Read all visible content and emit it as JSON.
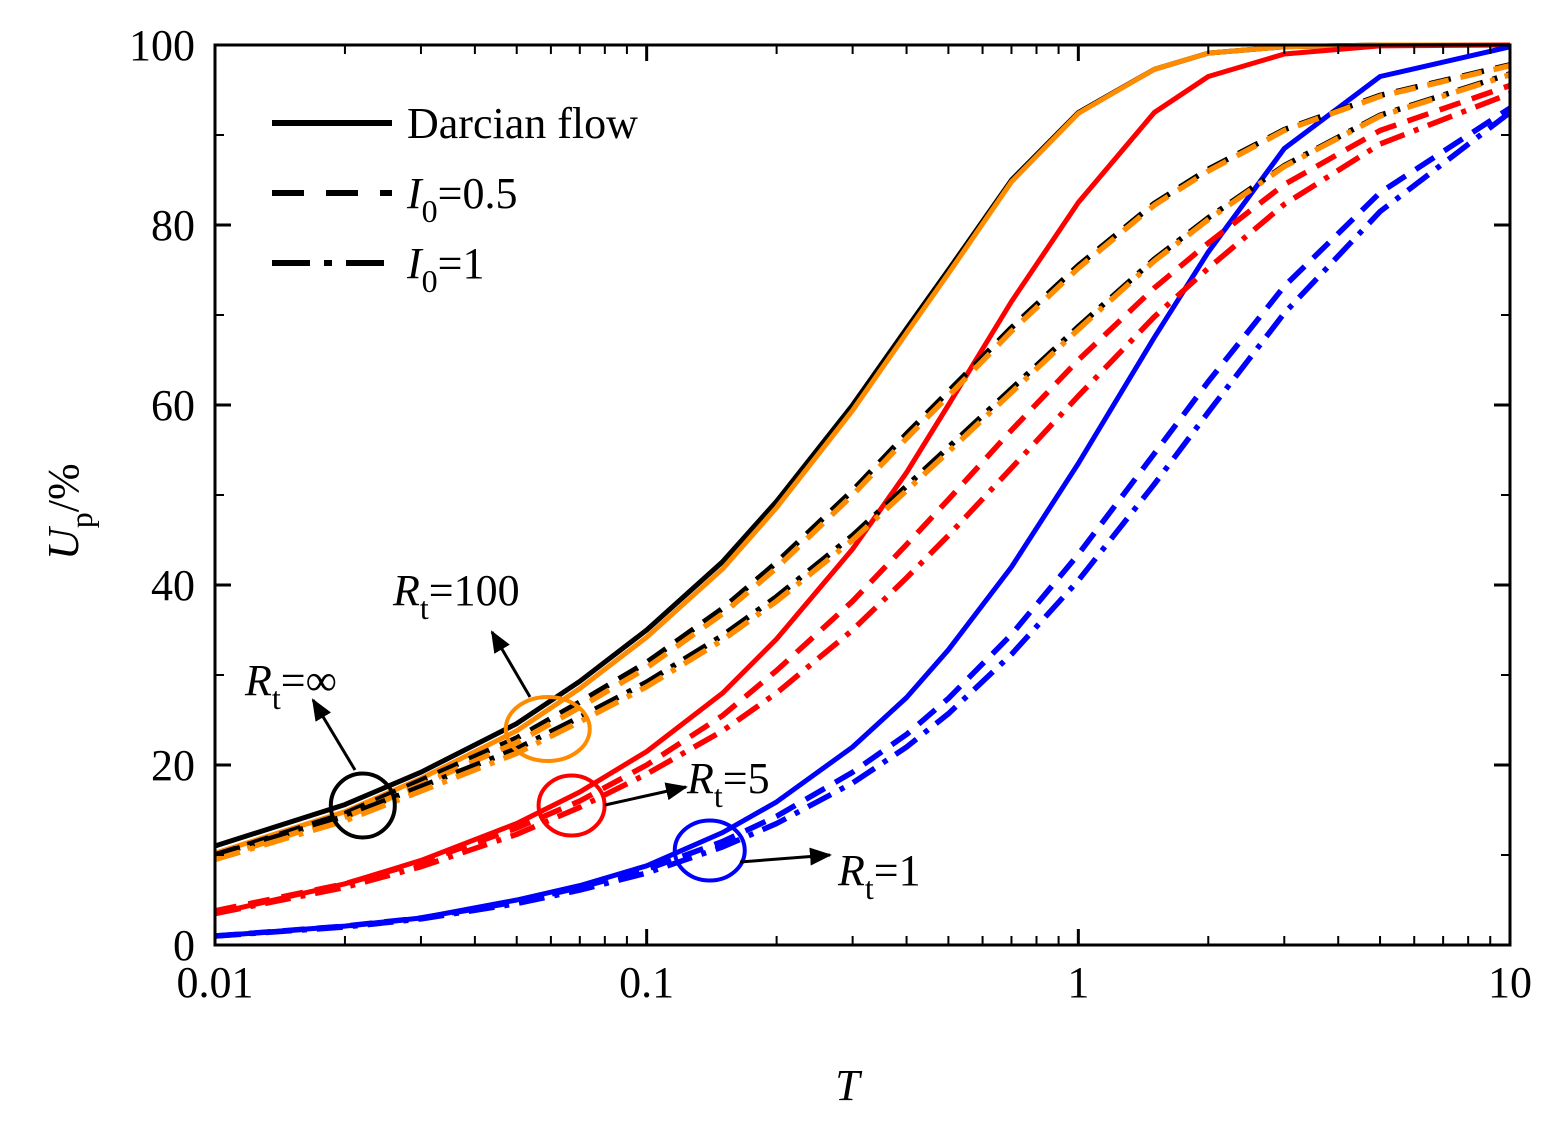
{
  "chart_data": {
    "type": "line",
    "x_scale": "log",
    "xlim": [
      0.01,
      10
    ],
    "ylim": [
      0,
      100
    ],
    "xlabel": "T",
    "ylabel": {
      "main": "U",
      "sub": "p",
      "rest": "/%"
    },
    "x_ticks": [
      0.01,
      0.1,
      1,
      10
    ],
    "x_tick_labels": [
      "0.01",
      "0.1",
      "1",
      "10"
    ],
    "y_ticks": [
      0,
      20,
      40,
      60,
      80,
      100
    ],
    "y_tick_labels": [
      "0",
      "20",
      "40",
      "60",
      "80",
      "100"
    ],
    "colors": {
      "inf": "#000000",
      "r100": "#ff8c00",
      "r5": "#ff0000",
      "r1": "#0000ff"
    },
    "legend": [
      {
        "label": "Darcian flow",
        "style": "solid"
      },
      {
        "label_main": "I",
        "label_sub": "0",
        "label_rest": "=0.5",
        "style": "dash"
      },
      {
        "label_main": "I",
        "label_sub": "0",
        "label_rest": "=1",
        "style": "dashdot"
      }
    ],
    "annotations": [
      {
        "main": "R",
        "sub": "t",
        "rest": "=∞",
        "group": "inf"
      },
      {
        "main": "R",
        "sub": "t",
        "rest": "=100",
        "group": "r100"
      },
      {
        "main": "R",
        "sub": "t",
        "rest": "=5",
        "group": "r5"
      },
      {
        "main": "R",
        "sub": "t",
        "rest": "=1",
        "group": "r1"
      }
    ],
    "series": [
      {
        "name": "R_t=∞ Darcian flow",
        "group": "inf",
        "style": "solid",
        "x": [
          0.01,
          0.02,
          0.03,
          0.05,
          0.07,
          0.1,
          0.15,
          0.2,
          0.3,
          0.4,
          0.5,
          0.7,
          1,
          1.5,
          2,
          3,
          5,
          10
        ],
        "y": [
          11,
          15.6,
          19.2,
          24.6,
          29.3,
          35,
          42.6,
          49.3,
          60,
          68.5,
          75,
          85,
          92.5,
          97.3,
          99.1,
          99.8,
          100,
          100
        ]
      },
      {
        "name": "R_t=100 Darcian flow",
        "group": "r100",
        "style": "solid",
        "x": [
          0.01,
          0.02,
          0.03,
          0.05,
          0.07,
          0.1,
          0.15,
          0.2,
          0.3,
          0.4,
          0.5,
          0.7,
          1,
          1.5,
          2,
          3,
          5,
          10
        ],
        "y": [
          10.2,
          14.8,
          18.5,
          23.8,
          28.5,
          34.2,
          41.8,
          48.6,
          59.4,
          68,
          74.6,
          84.8,
          92.4,
          97.3,
          99.1,
          99.8,
          100,
          100
        ]
      },
      {
        "name": "R_t=5 Darcian flow",
        "group": "r5",
        "style": "solid",
        "x": [
          0.01,
          0.02,
          0.03,
          0.05,
          0.07,
          0.1,
          0.15,
          0.2,
          0.3,
          0.4,
          0.5,
          0.7,
          1,
          1.5,
          2,
          3,
          5,
          10
        ],
        "y": [
          3.5,
          6.8,
          9.4,
          13.5,
          17,
          21.5,
          28,
          34,
          44,
          52.5,
          60,
          71.5,
          82.5,
          92.5,
          96.5,
          99,
          99.9,
          100
        ]
      },
      {
        "name": "R_t=1 Darcian flow",
        "group": "r1",
        "style": "solid",
        "x": [
          0.01,
          0.02,
          0.03,
          0.05,
          0.07,
          0.1,
          0.15,
          0.2,
          0.3,
          0.4,
          0.5,
          0.7,
          1,
          1.5,
          2,
          3,
          5,
          10
        ],
        "y": [
          1,
          2.1,
          3,
          5,
          6.6,
          8.8,
          12.5,
          15.9,
          22,
          27.5,
          32.8,
          42,
          53.5,
          67.5,
          77,
          88.5,
          96.5,
          99.8
        ]
      },
      {
        "name": "R_t=∞ I0=0.5",
        "group": "inf",
        "style": "dash",
        "x": [
          0.01,
          0.02,
          0.03,
          0.05,
          0.07,
          0.1,
          0.15,
          0.2,
          0.3,
          0.4,
          0.5,
          0.7,
          1,
          1.5,
          2,
          3,
          5,
          10
        ],
        "y": [
          10,
          14.6,
          18.3,
          23,
          27,
          31.4,
          37.4,
          42.5,
          50.5,
          56.8,
          61.5,
          68.6,
          75.5,
          82.4,
          86.2,
          90.6,
          94.4,
          97.8
        ]
      },
      {
        "name": "R_t=100 I0=0.5",
        "group": "r100",
        "style": "dash",
        "x": [
          0.01,
          0.02,
          0.03,
          0.05,
          0.07,
          0.1,
          0.15,
          0.2,
          0.3,
          0.4,
          0.5,
          0.7,
          1,
          1.5,
          2,
          3,
          5,
          10
        ],
        "y": [
          9.6,
          14.2,
          17.8,
          22.5,
          26.4,
          30.8,
          36.8,
          41.9,
          50,
          56.3,
          61,
          68.2,
          75.2,
          82.2,
          86,
          90.5,
          94.3,
          97.7
        ]
      },
      {
        "name": "R_t=5 I0=0.5",
        "group": "r5",
        "style": "dash",
        "x": [
          0.01,
          0.02,
          0.03,
          0.05,
          0.07,
          0.1,
          0.15,
          0.2,
          0.3,
          0.4,
          0.5,
          0.7,
          1,
          1.5,
          2,
          3,
          5,
          10
        ],
        "y": [
          3.8,
          6.8,
          9.2,
          13,
          16,
          20,
          25.5,
          30.5,
          38.2,
          44.5,
          49.5,
          57.2,
          65,
          73,
          78,
          84.5,
          90.5,
          95.5
        ]
      },
      {
        "name": "R_t=1 I0=0.5",
        "group": "r1",
        "style": "dash",
        "x": [
          0.01,
          0.02,
          0.03,
          0.05,
          0.07,
          0.1,
          0.15,
          0.2,
          0.3,
          0.4,
          0.5,
          0.7,
          1,
          1.5,
          2,
          3,
          5,
          10
        ],
        "y": [
          1,
          2.1,
          3,
          4.8,
          6.4,
          8.4,
          11.5,
          14.3,
          19.2,
          23.4,
          27.4,
          34.5,
          43.4,
          54.6,
          62.6,
          73.2,
          83.6,
          93
        ]
      },
      {
        "name": "R_t=∞ I0=1",
        "group": "inf",
        "style": "dashdot",
        "x": [
          0.01,
          0.02,
          0.03,
          0.05,
          0.07,
          0.1,
          0.15,
          0.2,
          0.3,
          0.4,
          0.5,
          0.7,
          1,
          1.5,
          2,
          3,
          5,
          10
        ],
        "y": [
          10,
          14.3,
          17.6,
          21.8,
          25.3,
          29.2,
          34.4,
          38.7,
          45.5,
          51,
          55.3,
          61.8,
          68.7,
          76.2,
          80.8,
          86.6,
          92.2,
          96.8
        ]
      },
      {
        "name": "R_t=100 I0=1",
        "group": "r100",
        "style": "dashdot",
        "x": [
          0.01,
          0.02,
          0.03,
          0.05,
          0.07,
          0.1,
          0.15,
          0.2,
          0.3,
          0.4,
          0.5,
          0.7,
          1,
          1.5,
          2,
          3,
          5,
          10
        ],
        "y": [
          9.5,
          13.8,
          17.1,
          21.3,
          24.8,
          28.7,
          33.9,
          38.2,
          45,
          50.5,
          54.8,
          61.4,
          68.4,
          76,
          80.6,
          86.5,
          92.1,
          96.7
        ]
      },
      {
        "name": "R_t=5 I0=1",
        "group": "r5",
        "style": "dashdot",
        "x": [
          0.01,
          0.02,
          0.03,
          0.05,
          0.07,
          0.1,
          0.15,
          0.2,
          0.3,
          0.4,
          0.5,
          0.7,
          1,
          1.5,
          2,
          3,
          5,
          10
        ],
        "y": [
          3.5,
          6.4,
          8.7,
          12.3,
          15.3,
          19,
          23.8,
          28,
          35,
          40.8,
          45.5,
          53,
          61,
          69.8,
          75.2,
          82.3,
          89,
          94.6
        ]
      },
      {
        "name": "R_t=1 I0=1",
        "group": "r1",
        "style": "dashdot",
        "x": [
          0.01,
          0.02,
          0.03,
          0.05,
          0.07,
          0.1,
          0.15,
          0.2,
          0.3,
          0.4,
          0.5,
          0.7,
          1,
          1.5,
          2,
          3,
          5,
          10
        ],
        "y": [
          1,
          2,
          2.9,
          4.6,
          6.1,
          8,
          10.9,
          13.5,
          18,
          22,
          25.7,
          32.3,
          40.5,
          51.2,
          59.2,
          70.2,
          81.5,
          92.5
        ]
      }
    ]
  }
}
